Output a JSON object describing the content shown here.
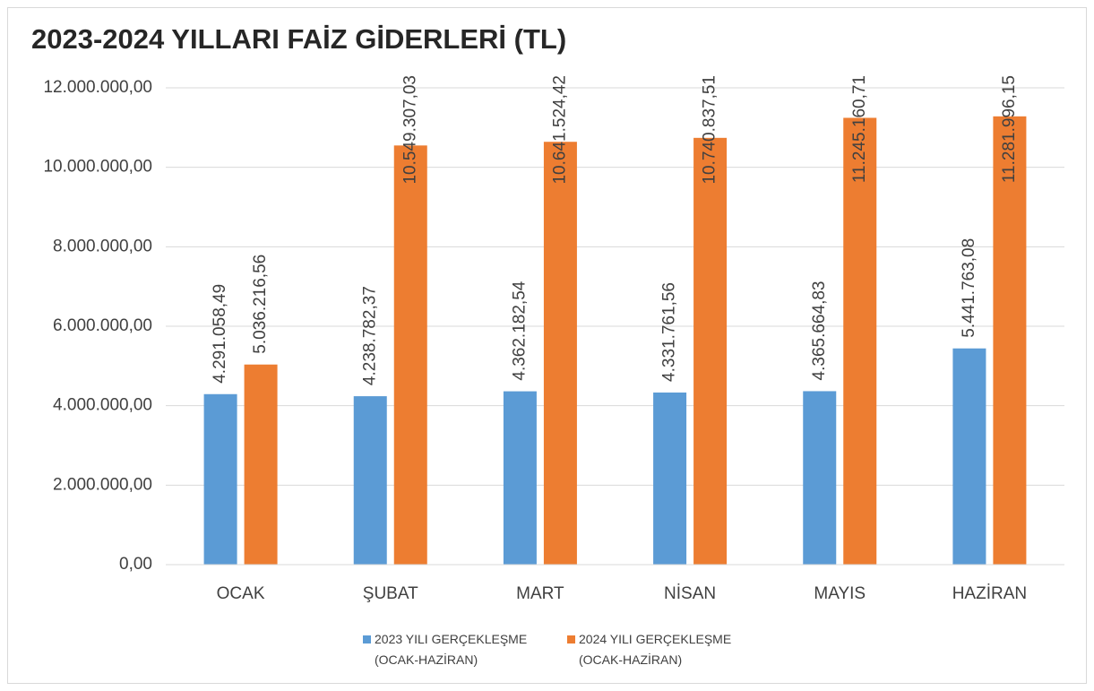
{
  "chart_data": {
    "type": "bar",
    "title": "2023-2024 YILLARI FAİZ GİDERLERİ (TL)",
    "categories": [
      "OCAK",
      "ŞUBAT",
      "MART",
      "NİSAN",
      "MAYIS",
      "HAZİRAN"
    ],
    "series": [
      {
        "name": "2023 YILI GERÇEKLEŞME (OCAK-HAZİRAN)",
        "color": "#5b9bd5",
        "values": [
          4291058.49,
          4238782.37,
          4362182.54,
          4331761.56,
          4365664.83,
          5441763.08
        ],
        "value_labels": [
          "4.291.058,49",
          "4.238.782,37",
          "4.362.182,54",
          "4.331.761,56",
          "4.365.664,83",
          "5.441.763,08"
        ]
      },
      {
        "name": "2024 YILI GERÇEKLEŞME (OCAK-HAZİRAN)",
        "color": "#ed7d31",
        "values": [
          5036216.56,
          10549307.03,
          10641524.42,
          10740837.51,
          11245160.71,
          11281996.15
        ],
        "value_labels": [
          "5.036.216,56",
          "10.549.307,03",
          "10.641.524,42",
          "10.740.837,51",
          "11.245.160,71",
          "11.281.996,15"
        ]
      }
    ],
    "ylim": [
      0,
      12000000
    ],
    "yticks": [
      {
        "value": 0,
        "label": "0,00"
      },
      {
        "value": 2000000,
        "label": "2.000.000,00"
      },
      {
        "value": 4000000,
        "label": "4.000.000,00"
      },
      {
        "value": 6000000,
        "label": "6.000.000,00"
      },
      {
        "value": 8000000,
        "label": "8.000.000,00"
      },
      {
        "value": 10000000,
        "label": "10.000.000,00"
      },
      {
        "value": 12000000,
        "label": "12.000.000,00"
      }
    ],
    "grid": true,
    "legend": "bottom"
  }
}
